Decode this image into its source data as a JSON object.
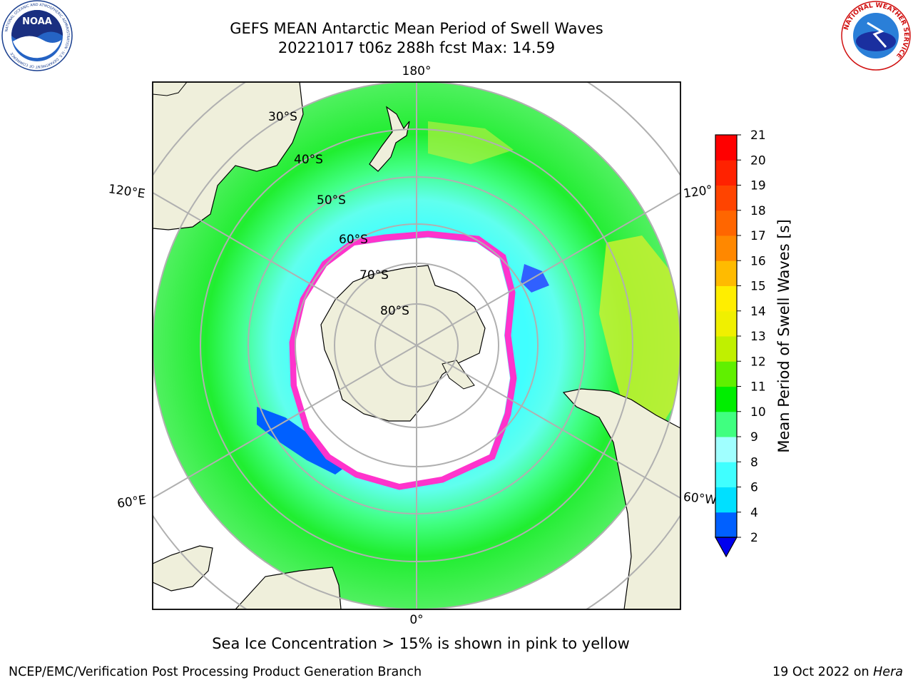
{
  "title_line1": "GEFS MEAN Antarctic Mean Period of Swell Waves",
  "title_line2": "20221017 t06z 288h fcst   Max: 14.59",
  "left_logo": {
    "name": "NOAA",
    "ring_text": "NATIONAL OCEANIC AND ATMOSPHERIC ADMINISTRATION · U.S. DEPARTMENT OF COMMERCE"
  },
  "right_logo": {
    "ring_text": "NATIONAL WEATHER SERVICE"
  },
  "map": {
    "lon_labels": {
      "top": "180°",
      "bottom": "0°",
      "left_upper": "120°E",
      "left_lower": "60°E",
      "right_upper": "120°",
      "right_lower": "60°W"
    },
    "lat_labels": [
      "30°S",
      "40°S",
      "50°S",
      "60°S",
      "70°S",
      "80°S"
    ],
    "colors": {
      "land": "#efefdb",
      "grid": "#b0b0b0",
      "ice_edge": "#ff33cc",
      "ice_inner": "#f4b030"
    }
  },
  "colorbar": {
    "label": "Mean Period of Swell Waves [s]",
    "ticks": [
      "2",
      "4",
      "6",
      "8",
      "9",
      "10",
      "11",
      "12",
      "13",
      "14",
      "15",
      "16",
      "17",
      "18",
      "19",
      "20",
      "21"
    ],
    "colors": [
      "#0060ff",
      "#00e0ff",
      "#40ffff",
      "#a0ffff",
      "#40ff80",
      "#00ee00",
      "#60f000",
      "#c0f000",
      "#f0f000",
      "#ffee00",
      "#ffbb00",
      "#ff8800",
      "#ff6600",
      "#ff4400",
      "#ff2200",
      "#ff0000"
    ],
    "under_color": "#0000ee"
  },
  "footnote": "Sea Ice Concentration > 15% is shown in pink to yellow",
  "footer_left": "NCEP/EMC/Verification Post Processing Product Generation Branch",
  "footer_right_date": "19 Oct 2022 on",
  "footer_right_host": "Hera"
}
